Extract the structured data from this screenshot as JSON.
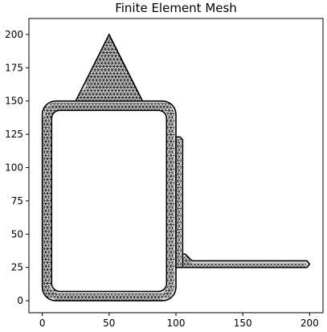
{
  "chart_data": {
    "type": "mesh",
    "title": "Finite Element Mesh",
    "xlabel": "",
    "ylabel": "",
    "xlim": [
      -10,
      210
    ],
    "ylim": [
      -9,
      212
    ],
    "xticks": [
      0,
      50,
      100,
      150,
      200
    ],
    "yticks": [
      0,
      25,
      50,
      75,
      100,
      125,
      150,
      175,
      200
    ],
    "grid": false,
    "mesh_color": "#000000",
    "fill_color": "#d9d9d9",
    "regions": [
      {
        "name": "rounded rectangle ring",
        "outer_rect": {
          "x0": 0,
          "y0": 0,
          "x1": 100,
          "y1": 150,
          "corner_radius": 10
        },
        "inner_rect": {
          "x0": 7,
          "y0": 7,
          "x1": 93,
          "y1": 143,
          "corner_radius": 6
        }
      },
      {
        "name": "triangle",
        "vertices": [
          [
            25,
            150
          ],
          [
            50,
            200
          ],
          [
            75,
            150
          ]
        ]
      },
      {
        "name": "vertical stem",
        "polygon": [
          [
            100,
            25
          ],
          [
            105,
            25
          ],
          [
            105,
            121
          ],
          [
            103,
            123
          ],
          [
            100,
            123
          ]
        ]
      },
      {
        "name": "horizontal arm",
        "polygon": [
          [
            105,
            25
          ],
          [
            198,
            25
          ],
          [
            200,
            27.5
          ],
          [
            198,
            30
          ],
          [
            112,
            30
          ],
          [
            107,
            35
          ],
          [
            105,
            35
          ]
        ]
      }
    ]
  }
}
